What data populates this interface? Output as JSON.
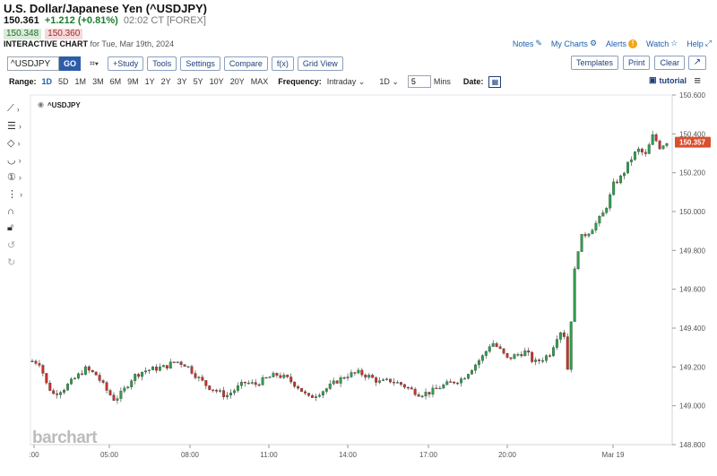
{
  "header": {
    "title": "U.S. Dollar/Japanese Yen (^USDJPY)",
    "last_price": "150.361",
    "change": "+1.212 (+0.81%)",
    "time": "02:02 CT [FOREX]",
    "bid": "150.348",
    "ask": "150.360",
    "chart_label": "INTERACTIVE CHART",
    "chart_date": "for Tue, Mar 19th, 2024"
  },
  "toplinks": {
    "notes": "Notes",
    "my_charts": "My Charts",
    "alerts": "Alerts",
    "watch": "Watch",
    "help": "Help"
  },
  "toolbar": {
    "symbol": "^USDJPY",
    "go": "GO",
    "study": "+Study",
    "tools": "Tools",
    "settings": "Settings",
    "compare": "Compare",
    "fx": "f(x)",
    "grid_view": "Grid View",
    "templates": "Templates",
    "print": "Print",
    "clear": "Clear"
  },
  "rangebar": {
    "range_label": "Range:",
    "ranges": [
      "1D",
      "5D",
      "1M",
      "3M",
      "6M",
      "9M",
      "1Y",
      "2Y",
      "3Y",
      "5Y",
      "10Y",
      "20Y",
      "MAX"
    ],
    "active_range": "1D",
    "frequency_label": "Frequency:",
    "frequency": "Intraday",
    "interval_unit": "1D",
    "interval_value": "5",
    "interval_label": "Mins",
    "date_label": "Date:",
    "tutorial": "tutorial"
  },
  "colors": {
    "up": "#2e9e4a",
    "down": "#c8322a",
    "price_tag": "#d9502e",
    "link": "#1f5fa8"
  },
  "chart_data": {
    "type": "candlestick",
    "symbol_label": "^USDJPY",
    "watermark": "barchart",
    "x_ticks": [
      ":00",
      "05:00",
      "08:00",
      "11:00",
      "14:00",
      "17:00",
      "20:00",
      "Mar 19"
    ],
    "y_ticks": [
      "148.800",
      "149.000",
      "149.200",
      "149.400",
      "149.600",
      "149.800",
      "150.000",
      "150.200",
      "150.400",
      "150.600"
    ],
    "ylim": [
      148.8,
      150.6
    ],
    "last_price_tag": "150.357",
    "approx_close_path": [
      [
        0,
        149.23
      ],
      [
        6,
        149.22
      ],
      [
        10,
        149.12
      ],
      [
        16,
        149.06
      ],
      [
        24,
        149.09
      ],
      [
        32,
        149.14
      ],
      [
        40,
        149.19
      ],
      [
        48,
        149.16
      ],
      [
        56,
        149.08
      ],
      [
        62,
        149.03
      ],
      [
        68,
        149.07
      ],
      [
        76,
        149.15
      ],
      [
        84,
        149.18
      ],
      [
        92,
        149.19
      ],
      [
        100,
        149.2
      ],
      [
        108,
        149.23
      ],
      [
        116,
        149.21
      ],
      [
        124,
        149.15
      ],
      [
        132,
        149.1
      ],
      [
        138,
        149.08
      ],
      [
        146,
        149.05
      ],
      [
        152,
        149.08
      ],
      [
        160,
        149.12
      ],
      [
        168,
        149.11
      ],
      [
        176,
        149.14
      ],
      [
        184,
        149.16
      ],
      [
        192,
        149.14
      ],
      [
        200,
        149.1
      ],
      [
        208,
        149.04
      ],
      [
        214,
        149.06
      ],
      [
        222,
        149.09
      ],
      [
        230,
        149.13
      ],
      [
        238,
        149.16
      ],
      [
        246,
        149.17
      ],
      [
        254,
        149.15
      ],
      [
        262,
        149.12
      ],
      [
        270,
        149.13
      ],
      [
        278,
        149.11
      ],
      [
        286,
        149.08
      ],
      [
        292,
        149.06
      ],
      [
        300,
        149.07
      ],
      [
        308,
        149.1
      ],
      [
        316,
        149.12
      ],
      [
        324,
        149.14
      ],
      [
        332,
        149.2
      ],
      [
        340,
        149.26
      ],
      [
        346,
        149.33
      ],
      [
        352,
        149.29
      ],
      [
        358,
        149.24
      ],
      [
        364,
        149.26
      ],
      [
        372,
        149.28
      ],
      [
        378,
        149.22
      ],
      [
        384,
        149.24
      ],
      [
        390,
        149.27
      ],
      [
        396,
        149.37
      ],
      [
        400,
        149.4
      ],
      [
        404,
        149.14
      ],
      [
        406,
        149.46
      ],
      [
        408,
        149.66
      ],
      [
        410,
        149.78
      ],
      [
        414,
        149.87
      ],
      [
        420,
        149.9
      ],
      [
        426,
        149.95
      ],
      [
        430,
        149.99
      ],
      [
        434,
        150.05
      ],
      [
        438,
        150.14
      ],
      [
        444,
        150.18
      ],
      [
        450,
        150.26
      ],
      [
        456,
        150.32
      ],
      [
        462,
        150.29
      ],
      [
        468,
        150.4
      ],
      [
        472,
        150.33
      ],
      [
        478,
        150.36
      ]
    ]
  }
}
